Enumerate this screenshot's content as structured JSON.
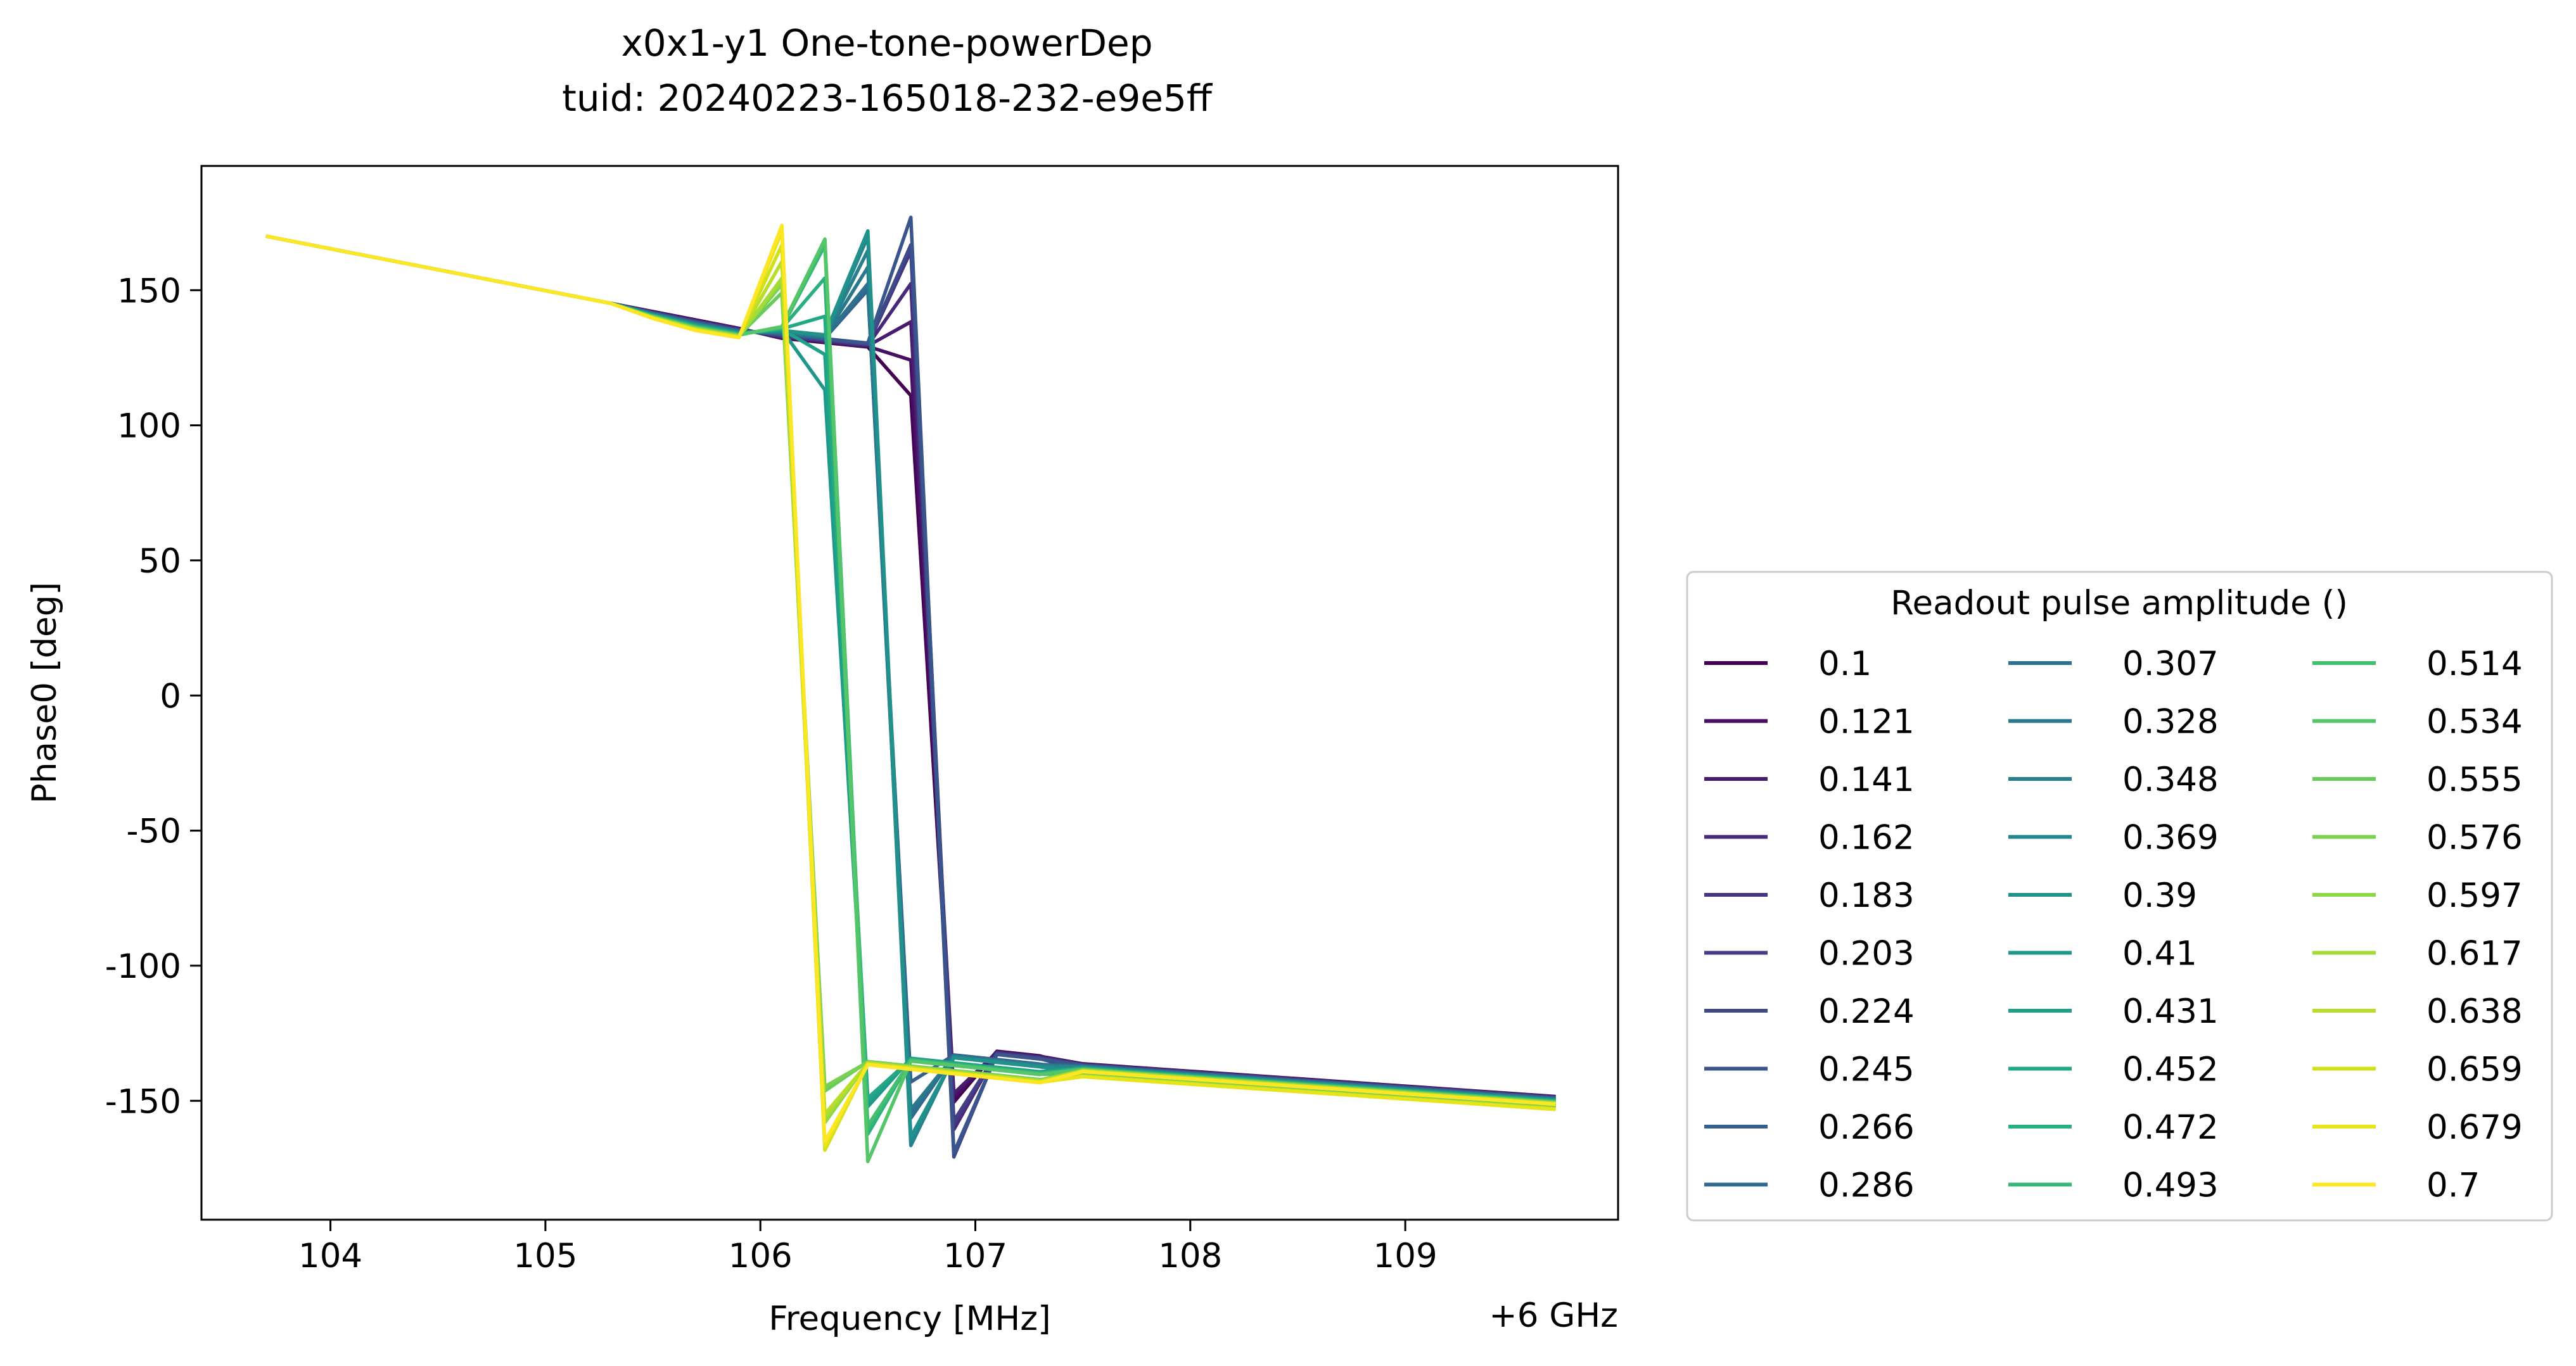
{
  "chart_data": {
    "type": "line",
    "title": "x0x1-y1 One-tone-powerDep",
    "subtitle": "tuid: 20240223-165018-232-e9e5ff",
    "xlabel": "Frequency [MHz]",
    "ylabel": "Phase0 [deg]",
    "x_offset_label": "+6 GHz",
    "xlim": [
      103.4,
      109.99
    ],
    "ylim": [
      -194,
      196
    ],
    "x_ticks": [
      104,
      105,
      106,
      107,
      108,
      109
    ],
    "x_tick_labels": [
      "104",
      "105",
      "106",
      "107",
      "108",
      "109"
    ],
    "y_ticks": [
      150,
      100,
      50,
      0,
      -50,
      -100,
      -150
    ],
    "y_tick_labels": [
      "150",
      "100",
      "50",
      "0",
      "-50",
      "-100",
      "-150"
    ],
    "grid": false,
    "legend_title": "Readout pulse amplitude ()",
    "legend_placement": "right",
    "legend_columns": 3,
    "x": [
      103.7,
      103.9,
      104.1,
      104.3,
      104.5,
      104.7,
      104.9,
      105.1,
      105.3,
      105.5,
      105.7,
      105.9,
      106.1,
      106.3,
      106.5,
      106.7,
      106.9,
      107.1,
      107.3,
      107.5,
      107.7,
      107.9,
      108.1,
      108.3,
      108.5,
      108.7,
      108.9,
      109.1,
      109.3,
      109.5,
      109.7
    ],
    "series": [
      {
        "name": "0.1",
        "color": "#440154"
      },
      {
        "name": "0.121",
        "color": "#470e61"
      },
      {
        "name": "0.141",
        "color": "#481b6d"
      },
      {
        "name": "0.162",
        "color": "#482878"
      },
      {
        "name": "0.183",
        "color": "#463480"
      },
      {
        "name": "0.203",
        "color": "#433e85"
      },
      {
        "name": "0.224",
        "color": "#3e4989"
      },
      {
        "name": "0.245",
        "color": "#39558c"
      },
      {
        "name": "0.266",
        "color": "#355f8d"
      },
      {
        "name": "0.286",
        "color": "#31688e"
      },
      {
        "name": "0.307",
        "color": "#2d718e"
      },
      {
        "name": "0.328",
        "color": "#2a788e"
      },
      {
        "name": "0.348",
        "color": "#27808e"
      },
      {
        "name": "0.369",
        "color": "#24878e"
      },
      {
        "name": "0.39",
        "color": "#21918c"
      },
      {
        "name": "0.41",
        "color": "#1f988b"
      },
      {
        "name": "0.431",
        "color": "#1fa088"
      },
      {
        "name": "0.452",
        "color": "#22a884"
      },
      {
        "name": "0.472",
        "color": "#2ab07f"
      },
      {
        "name": "0.493",
        "color": "#35b779"
      },
      {
        "name": "0.514",
        "color": "#44bf70"
      },
      {
        "name": "0.534",
        "color": "#54c568"
      },
      {
        "name": "0.555",
        "color": "#67cc5c"
      },
      {
        "name": "0.576",
        "color": "#7ad151"
      },
      {
        "name": "0.597",
        "color": "#8fd744"
      },
      {
        "name": "0.617",
        "color": "#a5db36"
      },
      {
        "name": "0.638",
        "color": "#bade28"
      },
      {
        "name": "0.659",
        "color": "#d0e11c"
      },
      {
        "name": "0.679",
        "color": "#e7e419"
      },
      {
        "name": "0.7",
        "color": "#fde725"
      }
    ]
  }
}
